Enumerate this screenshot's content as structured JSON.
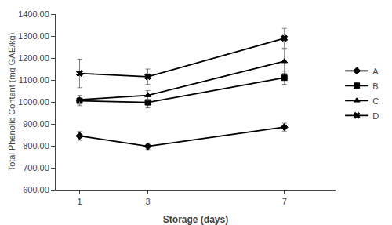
{
  "chart_data": {
    "type": "line",
    "x": [
      1,
      3,
      7
    ],
    "series": [
      {
        "name": "A",
        "color": "black",
        "marker": "diamond",
        "values": [
          845,
          798,
          885
        ],
        "yerr": [
          20,
          15,
          18
        ]
      },
      {
        "name": "B",
        "color": "black",
        "marker": "square",
        "values": [
          1005,
          998,
          1110
        ],
        "yerr": [
          22,
          25,
          30
        ]
      },
      {
        "name": "C",
        "color": "black",
        "marker": "triangle-up",
        "values": [
          1010,
          1030,
          1185
        ],
        "yerr": [
          20,
          22,
          55
        ]
      },
      {
        "name": "D",
        "color": "black",
        "marker": "x",
        "values": [
          1130,
          1115,
          1290
        ],
        "yerr": [
          65,
          35,
          45
        ]
      }
    ],
    "xlabel": "Storage (days)",
    "ylabel": "Total Phenolic Content (mg GAE/kg)",
    "xlim": [
      0.3,
      8.5
    ],
    "xticks": [
      1,
      3,
      7
    ],
    "ylim": [
      600,
      1400
    ],
    "yticks": [
      {
        "value": 600,
        "label": "600.00"
      },
      {
        "value": 700,
        "label": "700.00"
      },
      {
        "value": 800,
        "label": "800.00"
      },
      {
        "value": 900,
        "label": "900.00"
      },
      {
        "value": 1000,
        "label": "1000.00"
      },
      {
        "value": 1100,
        "label": "1100.00"
      },
      {
        "value": 1200,
        "label": "1200.00"
      },
      {
        "value": 1300,
        "label": "1300.00"
      },
      {
        "value": 1400,
        "label": "1400.00"
      }
    ],
    "grid": false,
    "legend": "right"
  }
}
